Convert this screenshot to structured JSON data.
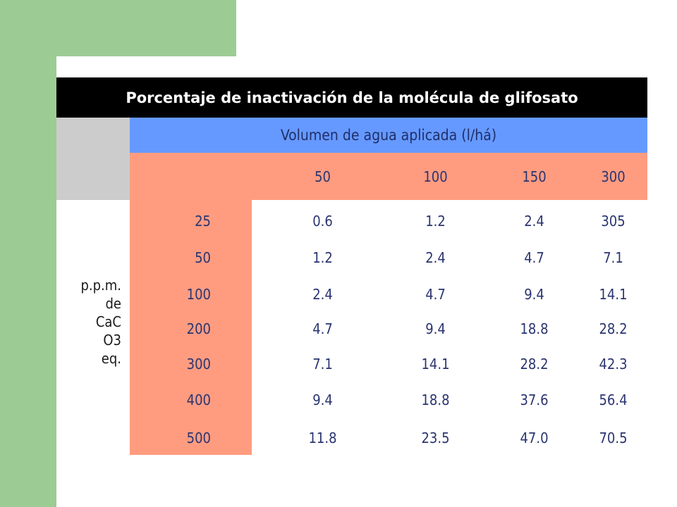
{
  "title": "Porcentaje de inactivación de la molécula de glifosato",
  "subtitle": "Volumen de agua aplicada (l/há)",
  "row_label_lines": [
    "p.p.m.",
    "de",
    "CaC",
    "O3",
    "eq."
  ],
  "columns": [
    "50",
    "100",
    "150",
    "300"
  ],
  "rows": [
    {
      "label": "25",
      "values": [
        "0.6",
        "1.2",
        "2.4",
        "305"
      ]
    },
    {
      "label": "50",
      "values": [
        "1.2",
        "2.4",
        "4.7",
        "7.1"
      ]
    },
    {
      "label": "100",
      "values": [
        "2.4",
        "4.7",
        "9.4",
        "14.1"
      ]
    },
    {
      "label": "200",
      "values": [
        "4.7",
        "9.4",
        "18.8",
        "28.2"
      ]
    },
    {
      "label": "300",
      "values": [
        "7.1",
        "14.1",
        "28.2",
        "42.3"
      ]
    },
    {
      "label": "400",
      "values": [
        "9.4",
        "18.8",
        "37.6",
        "56.4"
      ]
    },
    {
      "label": "500",
      "values": [
        "11.8",
        "23.5",
        "47.0",
        "70.5"
      ]
    }
  ],
  "colors": {
    "green": "#9ccc94",
    "black": "#000000",
    "blue": "#6699ff",
    "salmon": "#ff9c80",
    "gray": "#cccccc",
    "text_navy": "#2a3470"
  }
}
